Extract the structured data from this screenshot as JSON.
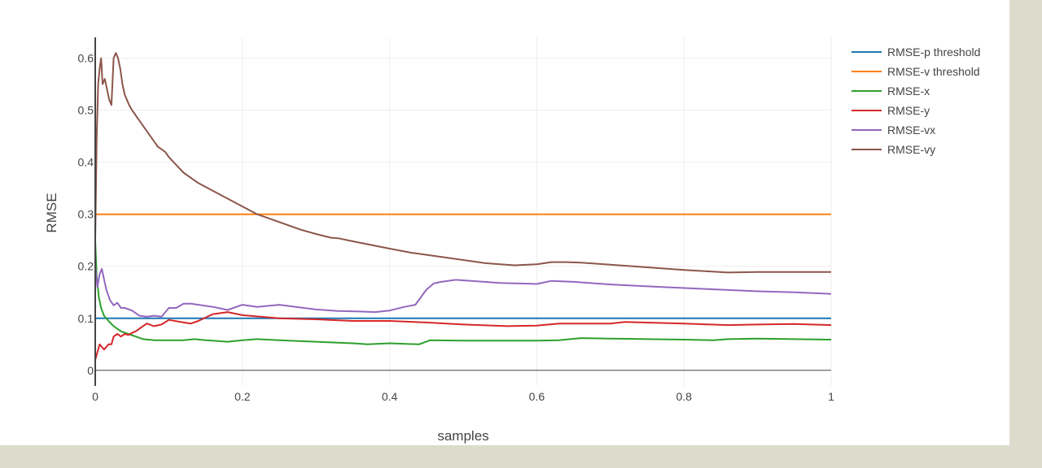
{
  "chart_data": {
    "type": "line",
    "title": "",
    "xlabel": "samples",
    "ylabel": "RMSE",
    "xlim": [
      0,
      1
    ],
    "ylim": [
      -0.03,
      0.64
    ],
    "xticks": [
      {
        "value": 0,
        "label": "0"
      },
      {
        "value": 0.2,
        "label": "0.2"
      },
      {
        "value": 0.4,
        "label": "0.4"
      },
      {
        "value": 0.6,
        "label": "0.6"
      },
      {
        "value": 0.8,
        "label": "0.8"
      },
      {
        "value": 1,
        "label": "1"
      }
    ],
    "yticks": [
      {
        "value": 0,
        "label": "0"
      },
      {
        "value": 0.1,
        "label": "0.1"
      },
      {
        "value": 0.2,
        "label": "0.2"
      },
      {
        "value": 0.3,
        "label": "0.3"
      },
      {
        "value": 0.4,
        "label": "0.4"
      },
      {
        "value": 0.5,
        "label": "0.5"
      },
      {
        "value": 0.6,
        "label": "0.6"
      }
    ],
    "grid": true,
    "legend_position": "top-right",
    "series": [
      {
        "name": "RMSE-p threshold",
        "color": "#1f77b4",
        "x": [
          0,
          1
        ],
        "y": [
          0.1,
          0.1
        ]
      },
      {
        "name": "RMSE-v threshold",
        "color": "#ff7f0e",
        "x": [
          0,
          1
        ],
        "y": [
          0.3,
          0.3
        ]
      },
      {
        "name": "RMSE-x",
        "color": "#2ca02c",
        "x": [
          0,
          0.002,
          0.005,
          0.008,
          0.012,
          0.018,
          0.025,
          0.035,
          0.045,
          0.055,
          0.065,
          0.08,
          0.1,
          0.12,
          0.135,
          0.15,
          0.18,
          0.2,
          0.22,
          0.25,
          0.3,
          0.35,
          0.37,
          0.4,
          0.44,
          0.455,
          0.5,
          0.6,
          0.63,
          0.66,
          0.7,
          0.75,
          0.8,
          0.84,
          0.86,
          0.9,
          0.95,
          1
        ],
        "y": [
          0.25,
          0.18,
          0.14,
          0.12,
          0.105,
          0.095,
          0.085,
          0.075,
          0.07,
          0.065,
          0.06,
          0.058,
          0.058,
          0.058,
          0.06,
          0.058,
          0.055,
          0.058,
          0.06,
          0.058,
          0.055,
          0.052,
          0.05,
          0.052,
          0.05,
          0.058,
          0.057,
          0.057,
          0.058,
          0.062,
          0.061,
          0.06,
          0.059,
          0.058,
          0.06,
          0.061,
          0.06,
          0.059
        ]
      },
      {
        "name": "RMSE-y",
        "color": "#d62728",
        "x": [
          0,
          0.003,
          0.006,
          0.009,
          0.012,
          0.015,
          0.018,
          0.022,
          0.025,
          0.03,
          0.035,
          0.04,
          0.045,
          0.05,
          0.055,
          0.06,
          0.07,
          0.08,
          0.09,
          0.1,
          0.12,
          0.13,
          0.14,
          0.16,
          0.18,
          0.2,
          0.25,
          0.3,
          0.35,
          0.4,
          0.45,
          0.5,
          0.56,
          0.6,
          0.63,
          0.7,
          0.72,
          0.8,
          0.86,
          0.9,
          0.95,
          1
        ],
        "y": [
          0.02,
          0.035,
          0.05,
          0.045,
          0.04,
          0.045,
          0.05,
          0.05,
          0.065,
          0.07,
          0.065,
          0.07,
          0.068,
          0.072,
          0.075,
          0.08,
          0.09,
          0.085,
          0.088,
          0.097,
          0.092,
          0.09,
          0.095,
          0.108,
          0.112,
          0.106,
          0.1,
          0.098,
          0.095,
          0.095,
          0.092,
          0.088,
          0.085,
          0.086,
          0.09,
          0.09,
          0.093,
          0.09,
          0.087,
          0.088,
          0.089,
          0.087
        ]
      },
      {
        "name": "RMSE-vx",
        "color": "#9467bd",
        "x": [
          0,
          0.003,
          0.006,
          0.009,
          0.012,
          0.015,
          0.02,
          0.025,
          0.03,
          0.035,
          0.04,
          0.05,
          0.06,
          0.07,
          0.08,
          0.09,
          0.1,
          0.11,
          0.12,
          0.13,
          0.14,
          0.16,
          0.18,
          0.2,
          0.22,
          0.25,
          0.3,
          0.33,
          0.36,
          0.38,
          0.4,
          0.42,
          0.435,
          0.45,
          0.46,
          0.47,
          0.49,
          0.55,
          0.6,
          0.62,
          0.65,
          0.7,
          0.77,
          0.85,
          0.9,
          0.95,
          1
        ],
        "y": [
          0.2,
          0.16,
          0.185,
          0.195,
          0.175,
          0.155,
          0.135,
          0.125,
          0.13,
          0.12,
          0.12,
          0.115,
          0.105,
          0.103,
          0.105,
          0.103,
          0.12,
          0.12,
          0.128,
          0.128,
          0.126,
          0.122,
          0.116,
          0.126,
          0.122,
          0.126,
          0.117,
          0.114,
          0.113,
          0.112,
          0.115,
          0.122,
          0.126,
          0.155,
          0.167,
          0.17,
          0.174,
          0.168,
          0.166,
          0.172,
          0.17,
          0.165,
          0.16,
          0.155,
          0.152,
          0.15,
          0.147
        ]
      },
      {
        "name": "RMSE-vy",
        "color": "#8c564b",
        "x": [
          0,
          0.002,
          0.004,
          0.006,
          0.008,
          0.01,
          0.013,
          0.016,
          0.019,
          0.022,
          0.025,
          0.028,
          0.031,
          0.034,
          0.037,
          0.04,
          0.043,
          0.046,
          0.05,
          0.055,
          0.06,
          0.065,
          0.07,
          0.075,
          0.08,
          0.085,
          0.09,
          0.095,
          0.1,
          0.11,
          0.12,
          0.13,
          0.14,
          0.16,
          0.18,
          0.2,
          0.22,
          0.24,
          0.26,
          0.28,
          0.3,
          0.32,
          0.33,
          0.35,
          0.4,
          0.43,
          0.46,
          0.5,
          0.53,
          0.55,
          0.57,
          0.6,
          0.62,
          0.64,
          0.66,
          0.7,
          0.75,
          0.8,
          0.86,
          0.9,
          0.95,
          1
        ],
        "y": [
          0.25,
          0.45,
          0.55,
          0.58,
          0.6,
          0.55,
          0.56,
          0.54,
          0.52,
          0.51,
          0.6,
          0.61,
          0.6,
          0.58,
          0.55,
          0.53,
          0.52,
          0.51,
          0.5,
          0.49,
          0.48,
          0.47,
          0.46,
          0.45,
          0.44,
          0.43,
          0.425,
          0.42,
          0.41,
          0.395,
          0.38,
          0.37,
          0.36,
          0.345,
          0.33,
          0.315,
          0.3,
          0.29,
          0.28,
          0.27,
          0.262,
          0.255,
          0.254,
          0.248,
          0.234,
          0.226,
          0.22,
          0.212,
          0.206,
          0.204,
          0.202,
          0.204,
          0.208,
          0.208,
          0.207,
          0.203,
          0.198,
          0.193,
          0.188,
          0.189,
          0.189,
          0.189
        ]
      }
    ]
  }
}
